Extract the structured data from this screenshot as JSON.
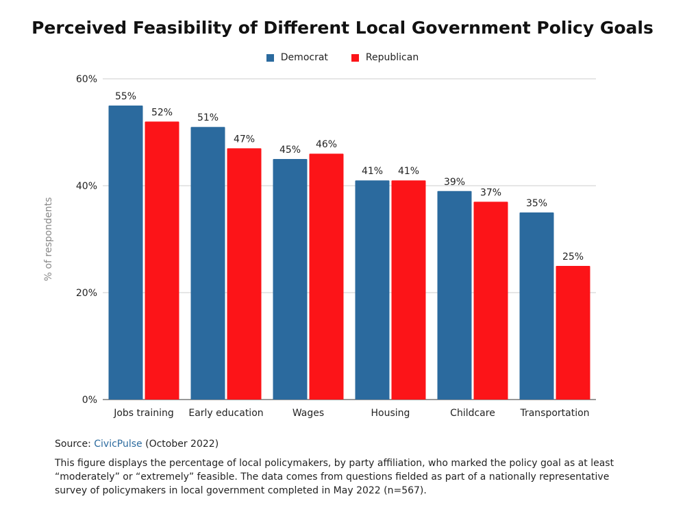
{
  "chart_data": {
    "type": "bar",
    "title": "Perceived Feasibility of Different Local Government Policy Goals",
    "ylabel": "% of respondents",
    "xlabel": "",
    "ylim": [
      0,
      60
    ],
    "yticks": [
      0,
      20,
      40,
      60
    ],
    "ytick_labels": [
      "0%",
      "20%",
      "40%",
      "60%"
    ],
    "grid": true,
    "legend_placement": "top",
    "categories": [
      "Jobs training",
      "Early education",
      "Wages",
      "Housing",
      "Childcare",
      "Transportation"
    ],
    "series": [
      {
        "name": "Democrat",
        "color": "#2b6a9e",
        "values": [
          55,
          51,
          45,
          41,
          39,
          35
        ],
        "labels": [
          "55%",
          "51%",
          "45%",
          "41%",
          "39%",
          "35%"
        ]
      },
      {
        "name": "Republican",
        "color": "#fc1418",
        "values": [
          52,
          47,
          46,
          41,
          37,
          25
        ],
        "labels": [
          "52%",
          "47%",
          "46%",
          "41%",
          "37%",
          "25%"
        ]
      }
    ]
  },
  "source": {
    "prefix": "Source: ",
    "link": "CivicPulse",
    "suffix": " (October 2022)"
  },
  "note": "This figure displays the percentage of local policymakers, by party affiliation, who marked the policy goal as at least “moderately” or “extremely” feasible. The data comes from questions fielded as part of a nationally representative survey of policymakers in local government completed in May 2022 (n=567)."
}
